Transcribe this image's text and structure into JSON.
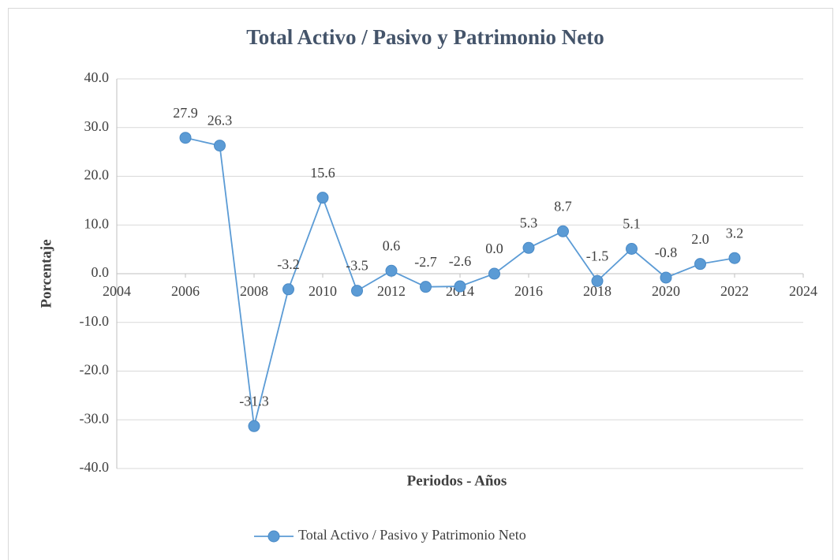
{
  "chart_data": {
    "type": "line",
    "title": "Total Activo / Pasivo y Patrimonio Neto",
    "x_label": "Periodos - Años",
    "y_label": "Porcentaje",
    "x": [
      2006,
      2007,
      2008,
      2009,
      2010,
      2011,
      2012,
      2013,
      2014,
      2015,
      2016,
      2017,
      2018,
      2019,
      2020,
      2021,
      2022
    ],
    "series": [
      {
        "name": "Total Activo / Pasivo y Patrimonio Neto",
        "color": "#5b9bd5",
        "values": [
          27.9,
          26.3,
          -31.3,
          -3.2,
          15.6,
          -3.5,
          0.6,
          -2.7,
          -2.6,
          0.0,
          5.3,
          8.7,
          -1.5,
          5.1,
          -0.8,
          2.0,
          3.2
        ],
        "value_labels": [
          "27.9",
          "26.3",
          "-31.3",
          "-3.2",
          "15.6",
          "-3.5",
          "0.6",
          "-2.7",
          "-2.6",
          "0.0",
          "5.3",
          "8.7",
          "-1.5",
          "5.1",
          "-0.8",
          "2.0",
          "3.2"
        ]
      }
    ],
    "xlim": [
      2004,
      2024
    ],
    "xticks": [
      2004,
      2006,
      2008,
      2010,
      2012,
      2014,
      2016,
      2018,
      2020,
      2022,
      2024
    ],
    "ylim": [
      -40,
      40
    ],
    "yticks": [
      {
        "value": -40,
        "label": "-40.0"
      },
      {
        "value": -30,
        "label": "-30.0"
      },
      {
        "value": -20,
        "label": "-20.0"
      },
      {
        "value": -10,
        "label": "-10.0"
      },
      {
        "value": 0,
        "label": "0.0"
      },
      {
        "value": 10,
        "label": "10.0"
      },
      {
        "value": 20,
        "label": "20.0"
      },
      {
        "value": 30,
        "label": "30.0"
      },
      {
        "value": 40,
        "label": "40.0"
      }
    ],
    "grid": true,
    "legend": "bottom"
  }
}
